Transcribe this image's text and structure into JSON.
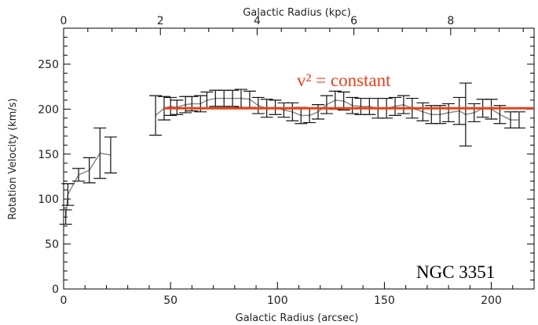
{
  "chart_data": {
    "type": "scatter",
    "xlabel_bottom": "Galactic Radius (arcsec)",
    "xlabel_top": "Galactic Radius (kpc)",
    "ylabel": "Rotation Velocity (km/s)",
    "xlim": [
      0,
      220
    ],
    "ylim": [
      0,
      290
    ],
    "x_ticks_bottom": [
      0,
      50,
      100,
      150,
      200
    ],
    "x_ticks_top_kpc": [
      0,
      2,
      4,
      6,
      8
    ],
    "y_ticks": [
      0,
      50,
      100,
      150,
      200,
      250
    ],
    "annotation_fit": "v² = constant",
    "annotation_galaxy": "NGC 3351",
    "fit_line": {
      "x": [
        47,
        220
      ],
      "y": [
        201,
        201
      ],
      "color": "#e8401c"
    },
    "series": [
      {
        "points": [
          {
            "x": 1,
            "y": 80,
            "err": 8
          },
          {
            "x": 2,
            "y": 105,
            "err": 12
          },
          {
            "x": 7,
            "y": 127,
            "err": 7
          },
          {
            "x": 12,
            "y": 132,
            "err": 14
          },
          {
            "x": 17,
            "y": 151,
            "err": 28
          },
          {
            "x": 22,
            "y": 149,
            "err": 20
          },
          {
            "x": 43,
            "y": 193,
            "err": 22
          },
          {
            "x": 47,
            "y": 201,
            "err": 13
          },
          {
            "x": 50,
            "y": 203,
            "err": 10
          },
          {
            "x": 53,
            "y": 202,
            "err": 8
          },
          {
            "x": 57,
            "y": 205,
            "err": 9
          },
          {
            "x": 60,
            "y": 206,
            "err": 8
          },
          {
            "x": 64,
            "y": 206,
            "err": 9
          },
          {
            "x": 67,
            "y": 210,
            "err": 9
          },
          {
            "x": 71,
            "y": 212,
            "err": 9
          },
          {
            "x": 75,
            "y": 212,
            "err": 9
          },
          {
            "x": 79,
            "y": 212,
            "err": 9
          },
          {
            "x": 83,
            "y": 212,
            "err": 10
          },
          {
            "x": 87,
            "y": 211,
            "err": 9
          },
          {
            "x": 91,
            "y": 204,
            "err": 9
          },
          {
            "x": 95,
            "y": 201,
            "err": 10
          },
          {
            "x": 99,
            "y": 202,
            "err": 8
          },
          {
            "x": 103,
            "y": 199,
            "err": 8
          },
          {
            "x": 107,
            "y": 197,
            "err": 10
          },
          {
            "x": 111,
            "y": 193,
            "err": 9
          },
          {
            "x": 115,
            "y": 193,
            "err": 8
          },
          {
            "x": 119,
            "y": 197,
            "err": 8
          },
          {
            "x": 123,
            "y": 205,
            "err": 10
          },
          {
            "x": 127,
            "y": 210,
            "err": 10
          },
          {
            "x": 131,
            "y": 209,
            "err": 10
          },
          {
            "x": 135,
            "y": 204,
            "err": 9
          },
          {
            "x": 139,
            "y": 203,
            "err": 9
          },
          {
            "x": 143,
            "y": 203,
            "err": 9
          },
          {
            "x": 147,
            "y": 201,
            "err": 11
          },
          {
            "x": 151,
            "y": 201,
            "err": 11
          },
          {
            "x": 155,
            "y": 203,
            "err": 10
          },
          {
            "x": 159,
            "y": 205,
            "err": 10
          },
          {
            "x": 163,
            "y": 201,
            "err": 11
          },
          {
            "x": 168,
            "y": 197,
            "err": 10
          },
          {
            "x": 172,
            "y": 194,
            "err": 10
          },
          {
            "x": 176,
            "y": 194,
            "err": 10
          },
          {
            "x": 180,
            "y": 196,
            "err": 10
          },
          {
            "x": 185,
            "y": 198,
            "err": 15
          },
          {
            "x": 188,
            "y": 194,
            "err": 35
          },
          {
            "x": 192,
            "y": 196,
            "err": 10
          },
          {
            "x": 196,
            "y": 201,
            "err": 10
          },
          {
            "x": 200,
            "y": 200,
            "err": 11
          },
          {
            "x": 204,
            "y": 194,
            "err": 10
          },
          {
            "x": 209,
            "y": 188,
            "err": 9
          },
          {
            "x": 213,
            "y": 188,
            "err": 9
          }
        ]
      }
    ]
  }
}
